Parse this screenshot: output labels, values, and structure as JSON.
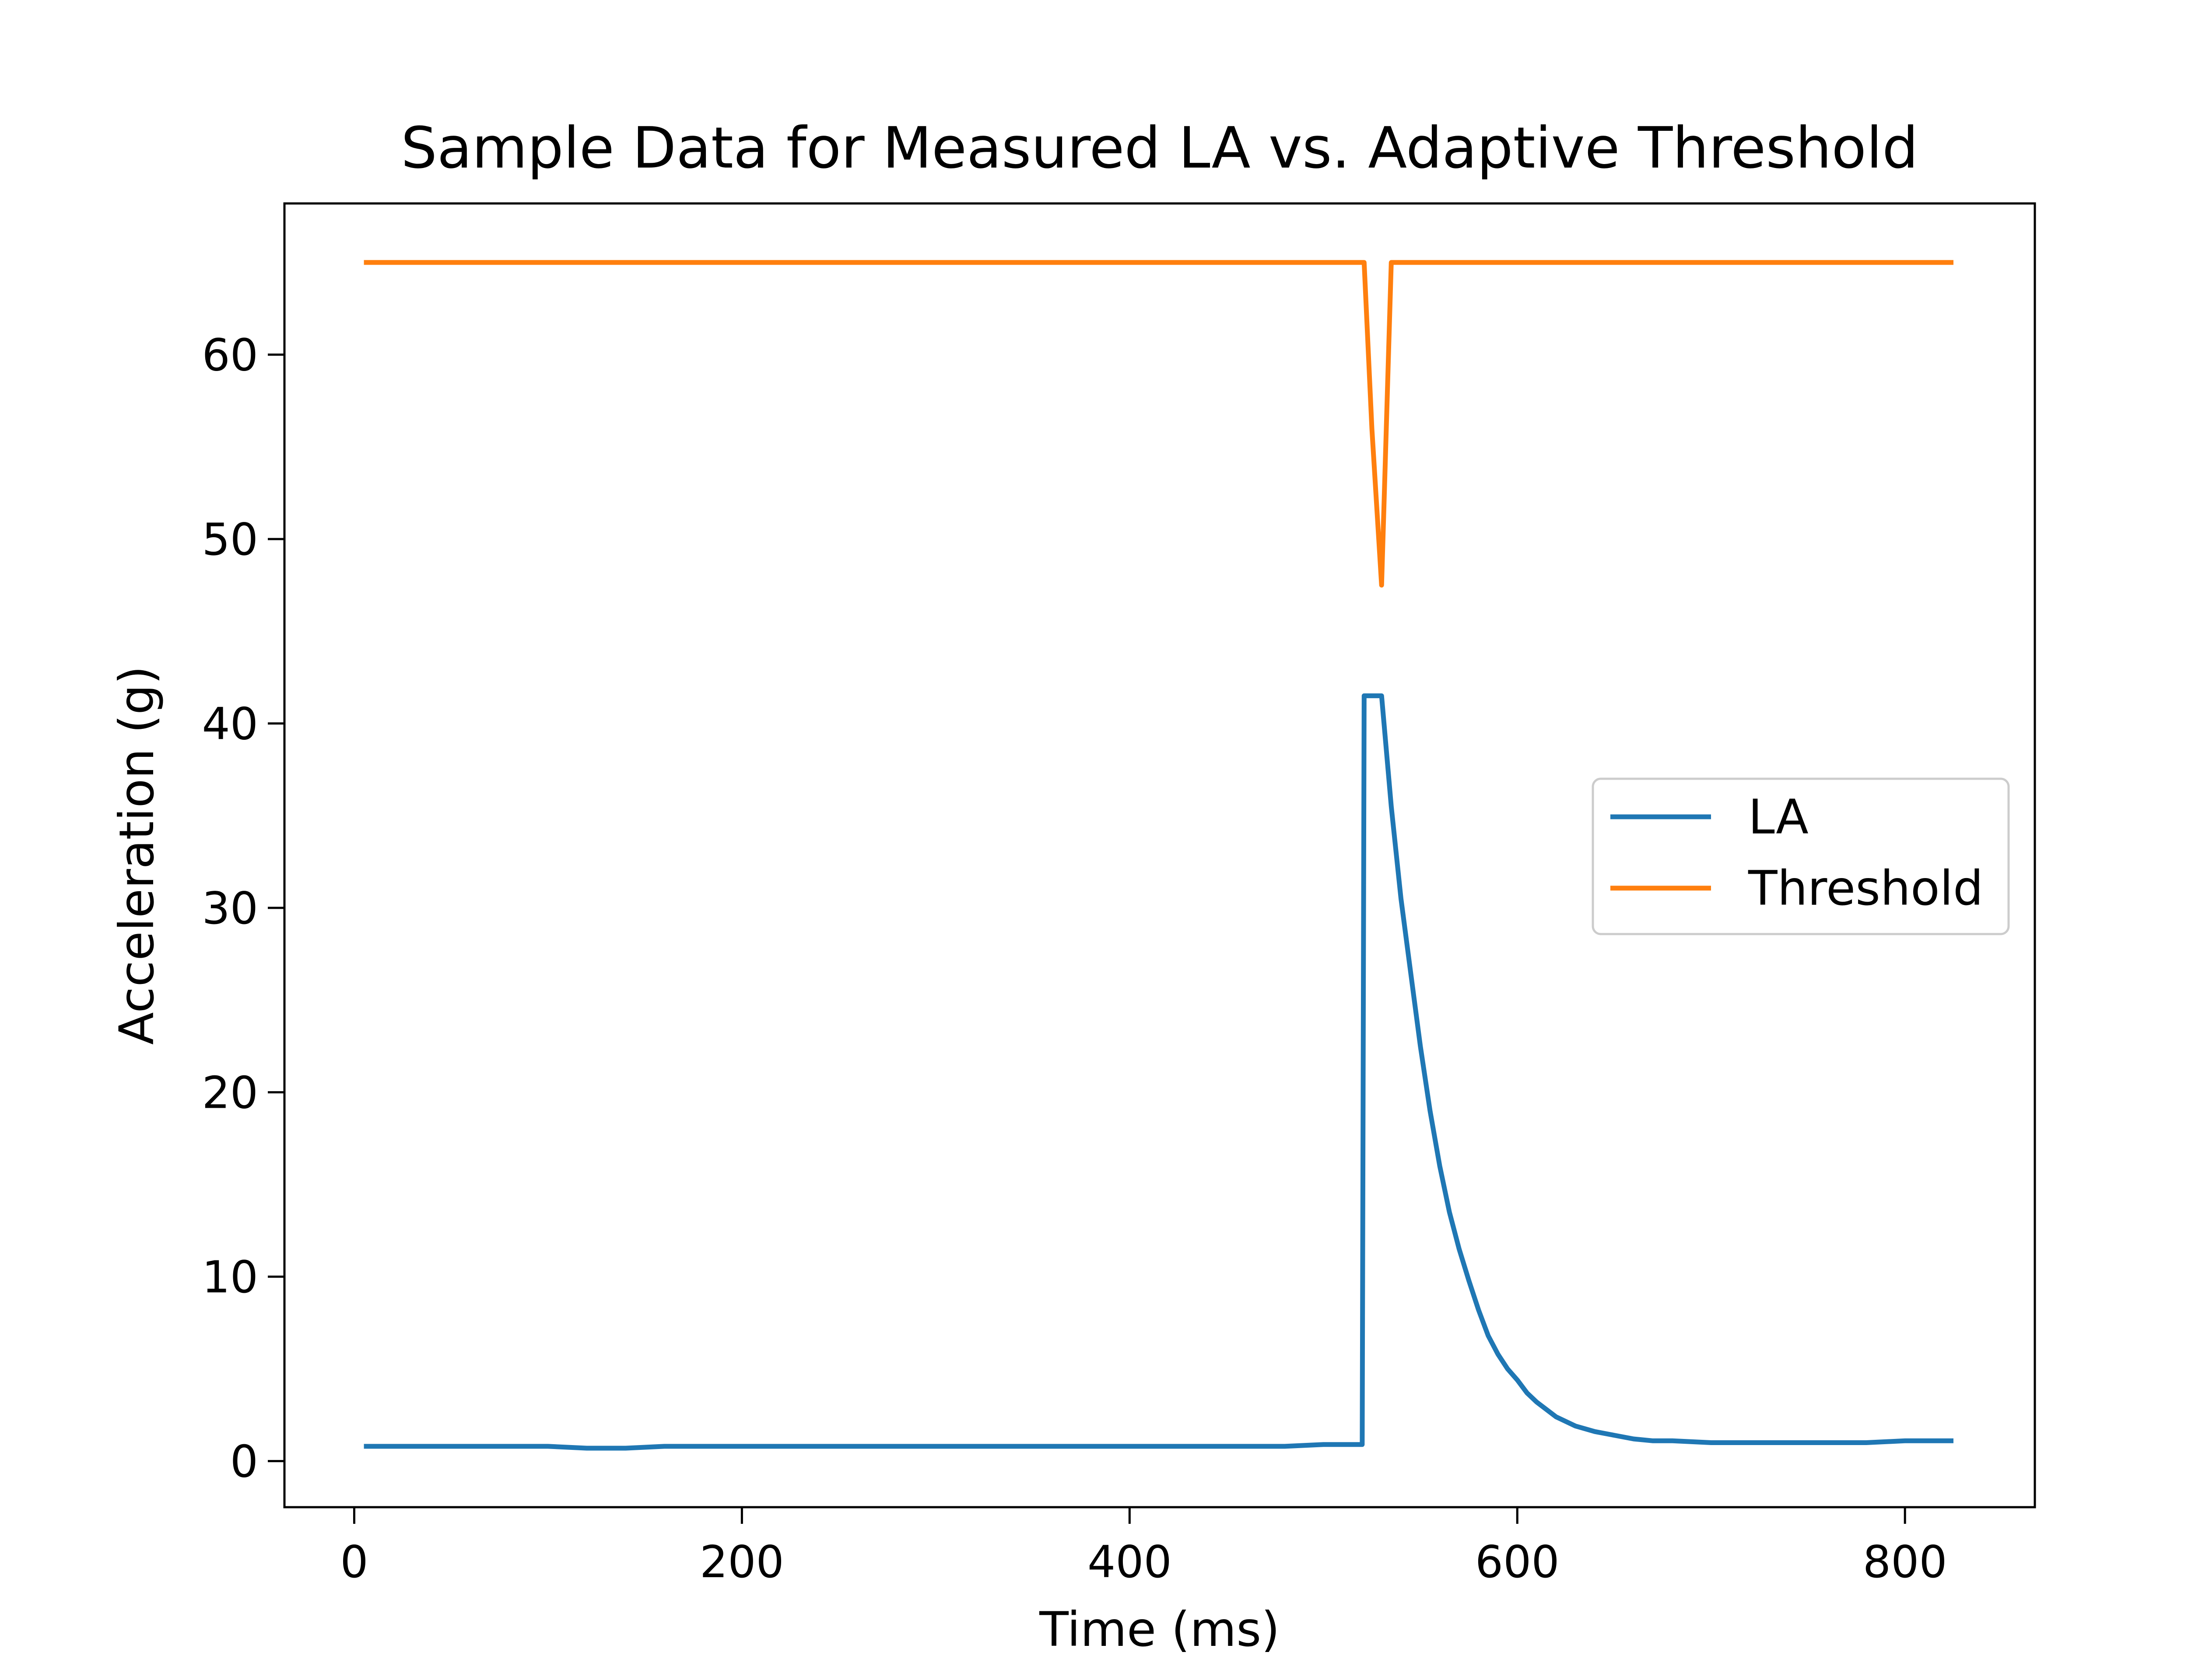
{
  "chart_data": {
    "type": "line",
    "title": "Sample Data for Measured LA vs. Adaptive Threshold",
    "xlabel": "Time (ms)",
    "ylabel": "Acceleration (g)",
    "xlim": [
      -36,
      867
    ],
    "ylim": [
      -2.5,
      68.2
    ],
    "xticks": [
      0,
      200,
      400,
      600,
      800
    ],
    "yticks": [
      0,
      10,
      20,
      30,
      40,
      50,
      60
    ],
    "grid": false,
    "legend_position": "center-right",
    "series": [
      {
        "name": "LA",
        "color": "#1f77b4",
        "x": [
          5,
          20,
          40,
          60,
          80,
          100,
          120,
          140,
          160,
          180,
          200,
          220,
          240,
          260,
          280,
          300,
          320,
          340,
          360,
          380,
          400,
          420,
          440,
          460,
          480,
          500,
          520,
          521,
          525,
          530,
          535,
          540,
          545,
          550,
          555,
          560,
          565,
          570,
          575,
          580,
          585,
          590,
          595,
          600,
          605,
          610,
          620,
          630,
          640,
          650,
          660,
          670,
          680,
          700,
          720,
          740,
          760,
          780,
          800,
          825
        ],
        "y": [
          0.8,
          0.8,
          0.8,
          0.8,
          0.8,
          0.8,
          0.7,
          0.7,
          0.8,
          0.8,
          0.8,
          0.8,
          0.8,
          0.8,
          0.8,
          0.8,
          0.8,
          0.8,
          0.8,
          0.8,
          0.8,
          0.8,
          0.8,
          0.8,
          0.8,
          0.9,
          0.9,
          41.5,
          41.5,
          41.5,
          35.5,
          30.5,
          26.5,
          22.5,
          19,
          16,
          13.5,
          11.5,
          9.8,
          8.2,
          6.8,
          5.8,
          5,
          4.4,
          3.7,
          3.2,
          2.4,
          1.9,
          1.6,
          1.4,
          1.2,
          1.1,
          1.1,
          1.0,
          1.0,
          1.0,
          1.0,
          1.0,
          1.1,
          1.1
        ]
      },
      {
        "name": "Threshold",
        "color": "#ff7f0e",
        "x": [
          5,
          100,
          200,
          300,
          400,
          500,
          521,
          525,
          530,
          535,
          540,
          600,
          700,
          800,
          825
        ],
        "y": [
          65,
          65,
          65,
          65,
          65,
          65,
          65,
          56,
          47.5,
          65,
          65,
          65,
          65,
          65,
          65
        ]
      }
    ]
  }
}
